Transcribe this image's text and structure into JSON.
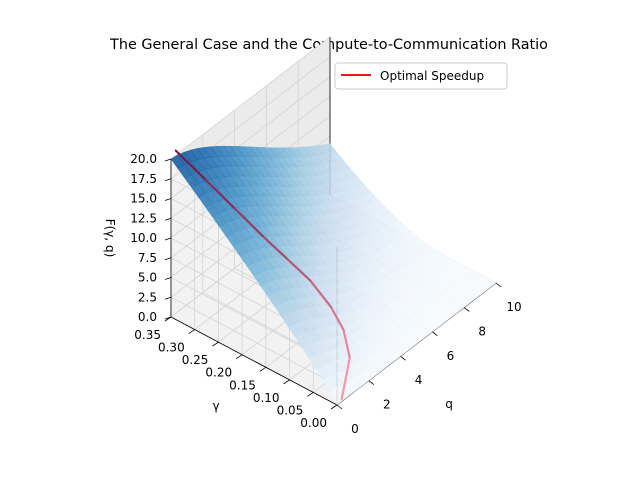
{
  "chart_data": {
    "type": "surface3d",
    "title": "The General Case and the Compute-to-Communication Ratio",
    "xlabel": "q",
    "ylabel": "γ",
    "zlabel": "F(γ, q)",
    "xlim": [
      0,
      10
    ],
    "ylim": [
      0,
      0.35
    ],
    "zlim": [
      0,
      20
    ],
    "x_ticks": [
      "0",
      "2",
      "4",
      "6",
      "8",
      "10"
    ],
    "y_ticks": [
      "0.00",
      "0.05",
      "0.10",
      "0.15",
      "0.20",
      "0.25",
      "0.30",
      "0.35"
    ],
    "z_ticks": [
      "0.0",
      "2.5",
      "5.0",
      "7.5",
      "10.0",
      "12.5",
      "15.0",
      "17.5",
      "20.0"
    ],
    "surface": {
      "colormap": "Blues",
      "peak_value": 20,
      "peak_at": {
        "q": 0,
        "gamma": 0.35
      }
    },
    "series": [
      {
        "name": "Optimal Speedup",
        "color": "#e31a1c",
        "points": [
          {
            "q": 0.3,
            "gamma": 0.0,
            "value": 0.3
          },
          {
            "q": 1.4,
            "gamma": 0.02,
            "value": 3.2
          },
          {
            "q": 1.9,
            "gamma": 0.05,
            "value": 5.0
          },
          {
            "q": 2.0,
            "gamma": 0.08,
            "value": 6.8
          },
          {
            "q": 1.9,
            "gamma": 0.12,
            "value": 9.0
          },
          {
            "q": 1.6,
            "gamma": 0.16,
            "value": 11.0
          },
          {
            "q": 1.3,
            "gamma": 0.2,
            "value": 13.0
          },
          {
            "q": 0.95,
            "gamma": 0.25,
            "value": 15.6
          },
          {
            "q": 0.6,
            "gamma": 0.3,
            "value": 18.2
          },
          {
            "q": 0.3,
            "gamma": 0.35,
            "value": 20.6
          }
        ]
      }
    ],
    "legend": {
      "position": "top-right",
      "entries": [
        "Optimal Speedup"
      ]
    },
    "grid": true
  }
}
